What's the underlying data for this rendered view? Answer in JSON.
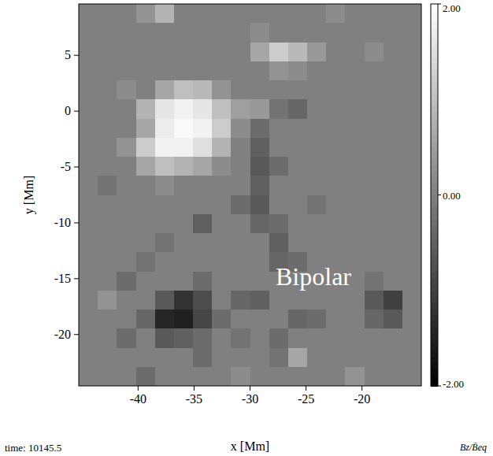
{
  "chart_data": {
    "type": "heatmap",
    "xlabel": "x [Mm]",
    "ylabel": "y [Mm]",
    "annotation": "Bipolar",
    "time_label": "time: 10145.5",
    "xlim": [
      -45.3,
      -14.7
    ],
    "ylim": [
      -24.6,
      9.6
    ],
    "xticks": [
      -40,
      -35,
      -30,
      -25,
      -20
    ],
    "yticks": [
      -20,
      -15,
      -10,
      -5,
      0,
      5
    ],
    "z": [
      [
        0,
        0,
        0,
        0.3,
        0.8,
        0,
        0,
        0,
        0,
        0,
        0,
        0,
        0,
        0.2,
        0,
        0,
        0,
        0
      ],
      [
        0,
        0,
        0,
        0,
        0,
        0,
        0,
        0,
        0,
        0.2,
        0,
        0,
        0,
        0,
        0,
        0,
        0,
        0
      ],
      [
        0,
        0,
        0,
        0,
        0,
        0,
        0,
        0,
        0,
        0.6,
        1.2,
        0.9,
        0.4,
        0,
        0,
        0.2,
        0,
        0
      ],
      [
        0,
        0,
        0,
        0,
        0,
        0,
        0,
        0,
        0,
        0,
        0.3,
        0.2,
        0,
        0,
        0,
        0,
        0,
        0
      ],
      [
        0,
        0,
        0.2,
        0,
        0.6,
        1.0,
        0.9,
        0.3,
        0,
        0,
        0,
        0,
        0,
        0,
        0,
        0,
        0,
        0
      ],
      [
        0,
        0,
        0,
        0.8,
        1.6,
        1.8,
        1.6,
        1.0,
        0.5,
        0.4,
        -0.2,
        -0.4,
        0,
        0,
        0,
        0,
        0,
        0
      ],
      [
        0,
        0,
        0,
        0.6,
        1.7,
        1.9,
        1.8,
        1.2,
        0.2,
        -0.3,
        0,
        0,
        0,
        0,
        0,
        0,
        0,
        0
      ],
      [
        0,
        0,
        0.3,
        1.2,
        1.8,
        1.8,
        1.5,
        0.8,
        0,
        -0.5,
        0,
        0,
        0,
        0,
        0,
        0,
        0,
        0
      ],
      [
        0,
        0,
        0,
        0.6,
        1.0,
        0.8,
        0.6,
        0.2,
        0,
        -0.6,
        -0.3,
        0,
        0,
        0,
        0,
        0,
        0,
        0
      ],
      [
        0,
        -0.2,
        0,
        0,
        0.2,
        0,
        0,
        0,
        0,
        -0.5,
        0,
        0,
        0,
        0,
        0,
        0,
        0,
        0
      ],
      [
        0,
        0,
        0,
        0,
        0,
        0,
        0,
        0,
        -0.3,
        -0.6,
        0,
        0,
        -0.2,
        0,
        0,
        0,
        0,
        0
      ],
      [
        0,
        0,
        0,
        0,
        0,
        0,
        -0.5,
        0,
        0,
        -0.4,
        -0.3,
        0,
        0,
        0,
        0,
        0,
        0,
        0
      ],
      [
        0,
        0,
        0,
        0,
        -0.2,
        0,
        0,
        0,
        0,
        0,
        -0.5,
        0,
        0,
        0,
        0,
        0,
        0,
        0
      ],
      [
        0,
        0,
        0,
        -0.2,
        0,
        0,
        0,
        0,
        0,
        0,
        -0.4,
        -0.3,
        0,
        0,
        0,
        0,
        0,
        0
      ],
      [
        0,
        0,
        -0.3,
        0,
        0,
        0,
        -0.3,
        0,
        0,
        0,
        0,
        0,
        0,
        0,
        0,
        -0.2,
        0,
        0
      ],
      [
        0,
        0.3,
        0,
        0,
        -0.6,
        -1.2,
        -0.8,
        0,
        -0.4,
        -0.5,
        0,
        0,
        0,
        0,
        0,
        -0.6,
        -1.0,
        0
      ],
      [
        0,
        0,
        0,
        -0.4,
        -1.4,
        -1.5,
        -0.9,
        -0.3,
        0,
        0,
        0,
        -0.4,
        -0.3,
        0,
        0,
        -0.4,
        -0.6,
        0
      ],
      [
        0,
        0,
        -0.3,
        0,
        -0.6,
        -0.5,
        -0.3,
        0,
        -0.2,
        0,
        -0.3,
        0,
        0,
        0,
        0,
        0,
        0,
        0
      ],
      [
        0,
        0,
        0,
        0,
        0,
        0,
        -0.3,
        0,
        0,
        0,
        -0.2,
        0.6,
        0,
        0,
        0,
        0,
        0,
        0
      ],
      [
        0,
        0,
        0,
        -0.3,
        0,
        0,
        0,
        0,
        0.2,
        0,
        0,
        0,
        0,
        0,
        0.3,
        0,
        0,
        0
      ]
    ],
    "colorbar": {
      "range": [
        -2,
        2
      ],
      "ticks": [
        {
          "value": 2,
          "label": "2.00"
        },
        {
          "value": 0,
          "label": "0.00"
        },
        {
          "value": -2,
          "label": "-2.00"
        }
      ],
      "label": "Bz/B̄eq"
    }
  }
}
